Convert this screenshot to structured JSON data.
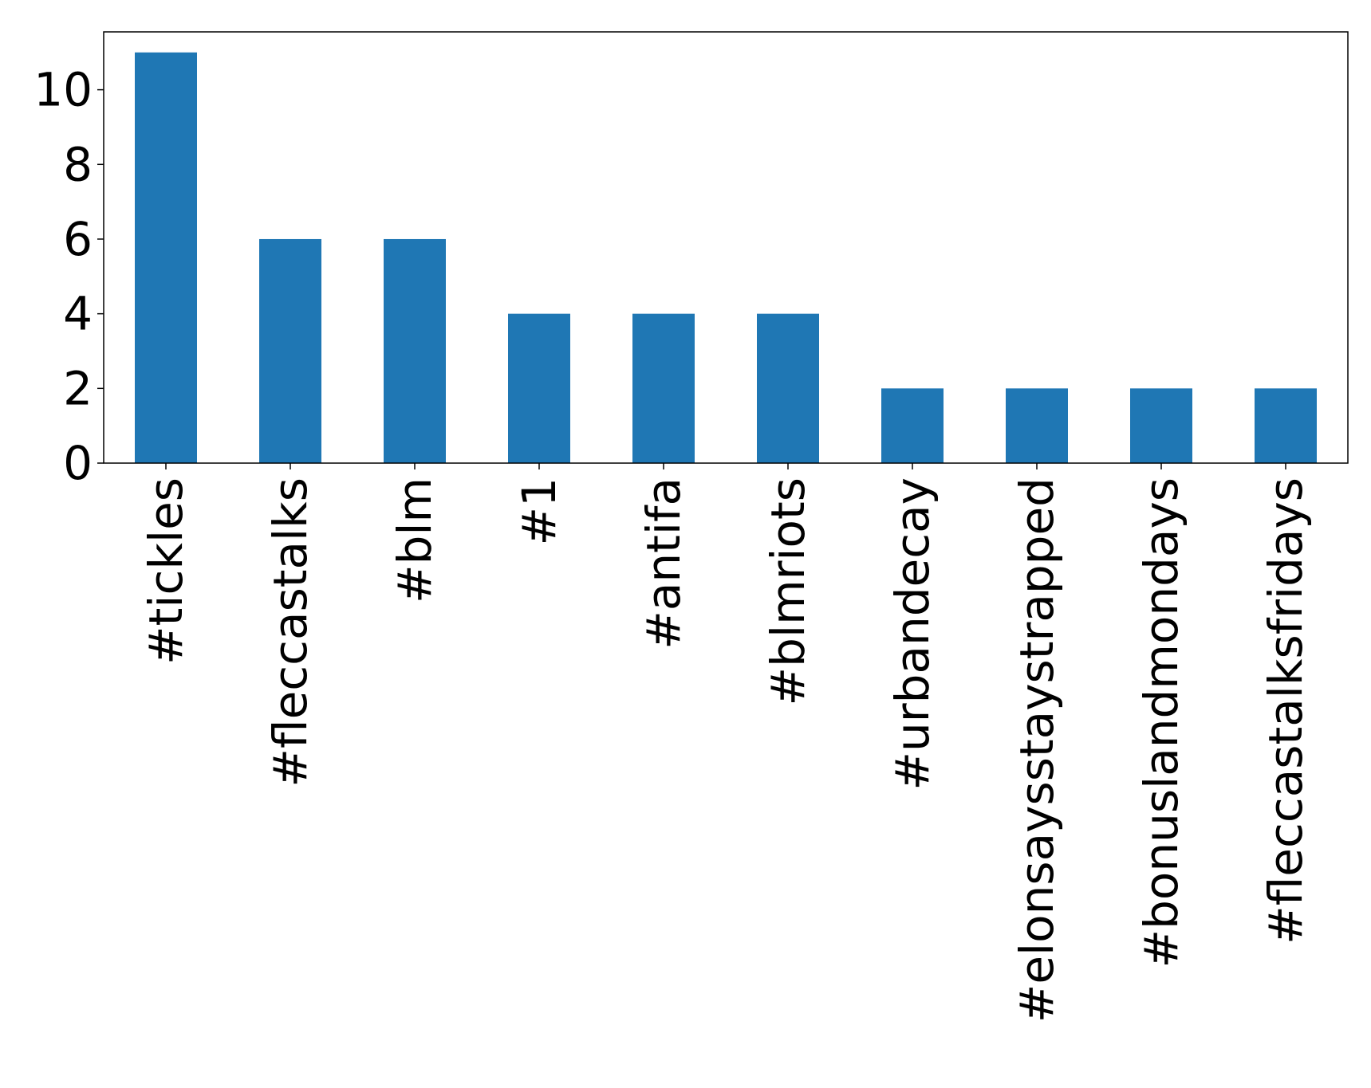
{
  "chart_data": {
    "type": "bar",
    "categories": [
      "#tickles",
      "#fleccastalks",
      "#blm",
      "#1",
      "#antifa",
      "#blmriots",
      "#urbandecay",
      "#elonsaysstaystrapped",
      "#bonuslandmondays",
      "#fleccastalksfridays"
    ],
    "values": [
      11,
      6,
      6,
      4,
      4,
      4,
      2,
      2,
      2,
      2
    ],
    "title": "",
    "xlabel": "",
    "ylabel": "",
    "ylim": [
      0,
      11.55
    ],
    "yticks": [
      0,
      2,
      4,
      6,
      8,
      10
    ],
    "grid": false,
    "legend": "none",
    "colors": {
      "bar": "#1f77b4",
      "axis": "#000000",
      "background": "#ffffff"
    }
  }
}
